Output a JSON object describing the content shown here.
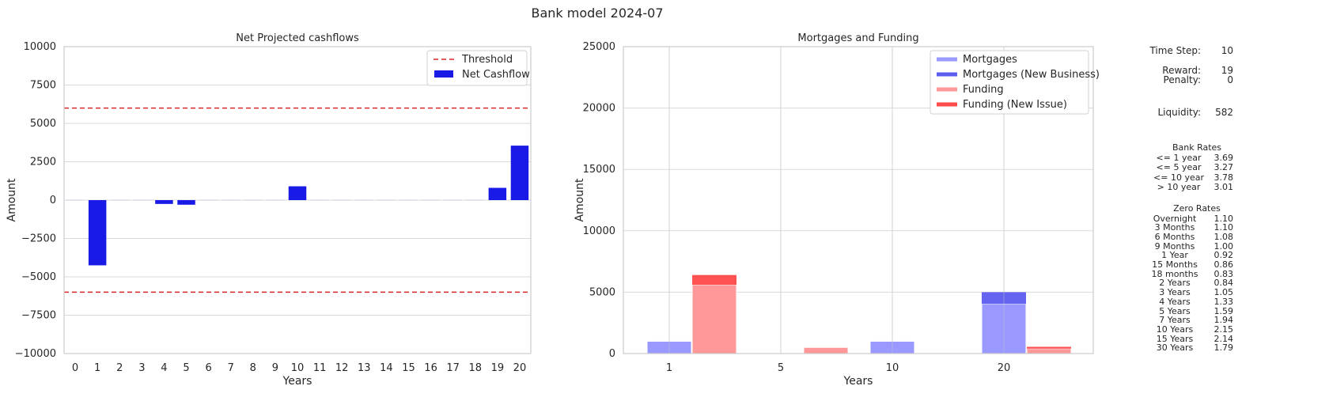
{
  "figure": {
    "title": "Bank model 2024-07"
  },
  "chart_data": [
    {
      "type": "bar",
      "title": "Net Projected cashflows",
      "xlabel": "Years",
      "ylabel": "Amount",
      "ylim": [
        -10000,
        10000
      ],
      "yticks": [
        -10000,
        -7500,
        -5000,
        -2500,
        0,
        2500,
        5000,
        7500,
        10000
      ],
      "categories": [
        "0",
        "1",
        "2",
        "3",
        "4",
        "5",
        "6",
        "7",
        "8",
        "9",
        "10",
        "11",
        "12",
        "13",
        "14",
        "15",
        "16",
        "17",
        "18",
        "19",
        "20"
      ],
      "series": [
        {
          "name": "Net Cashflow",
          "color": "#1a1ae6",
          "values": [
            0,
            -4250,
            0,
            0,
            -250,
            -300,
            0,
            0,
            0,
            0,
            900,
            0,
            0,
            0,
            0,
            0,
            0,
            0,
            0,
            800,
            3550
          ]
        }
      ],
      "threshold": {
        "name": "Threshold",
        "values": [
          6000,
          -6000
        ],
        "color": "#d62728"
      },
      "legend": "top-right",
      "grid": "y"
    },
    {
      "type": "bar",
      "title": "Mortgages and Funding",
      "xlabel": "Years",
      "ylabel": "Amount",
      "ylim": [
        0,
        25000
      ],
      "yticks": [
        0,
        5000,
        10000,
        15000,
        20000,
        25000
      ],
      "xticks": [
        1,
        5,
        10,
        20
      ],
      "legend": "top-right",
      "grid": "both",
      "series": [
        {
          "name": "Mortgages",
          "color": "#9999ff",
          "values": [
            1000,
            0,
            1000,
            4050
          ]
        },
        {
          "name": "Mortgages (New Business)",
          "color": "#5c5cf0",
          "values": [
            0,
            0,
            0,
            950
          ]
        },
        {
          "name": "Funding",
          "color": "#ff9999",
          "values": [
            5600,
            500,
            0,
            400
          ]
        },
        {
          "name": "Funding (New Issue)",
          "color": "#ff4a4a",
          "values": [
            800,
            0,
            0,
            150
          ]
        }
      ]
    }
  ],
  "stats": {
    "time_step_label": "Time Step:",
    "time_step": "10",
    "reward_label": "Reward:",
    "reward": "19",
    "penalty_label": "Penalty:",
    "penalty": "0",
    "liquidity_label": "Liquidity:",
    "liquidity": "582"
  },
  "bank_rates": {
    "title": "Bank Rates",
    "rows": [
      {
        "label": "<= 1 year",
        "value": "3.69"
      },
      {
        "label": "<= 5 year",
        "value": "3.27"
      },
      {
        "label": "<= 10 year",
        "value": "3.78"
      },
      {
        "label": "> 10 year",
        "value": "3.01"
      }
    ]
  },
  "zero_rates": {
    "title": "Zero Rates",
    "rows": [
      {
        "label": "Overnight",
        "value": "1.10"
      },
      {
        "label": "3 Months",
        "value": "1.10"
      },
      {
        "label": "6 Months",
        "value": "1.08"
      },
      {
        "label": "9 Months",
        "value": "1.00"
      },
      {
        "label": "1 Year",
        "value": "0.92"
      },
      {
        "label": "15 Months",
        "value": "0.86"
      },
      {
        "label": "18 months",
        "value": "0.83"
      },
      {
        "label": "2 Years",
        "value": "0.84"
      },
      {
        "label": "3 Years",
        "value": "1.05"
      },
      {
        "label": "4 Years",
        "value": "1.33"
      },
      {
        "label": "5 Years",
        "value": "1.59"
      },
      {
        "label": "7 Years",
        "value": "1.94"
      },
      {
        "label": "10 Years",
        "value": "2.15"
      },
      {
        "label": "15 Years",
        "value": "2.14"
      },
      {
        "label": "30 Years",
        "value": "1.79"
      }
    ]
  }
}
